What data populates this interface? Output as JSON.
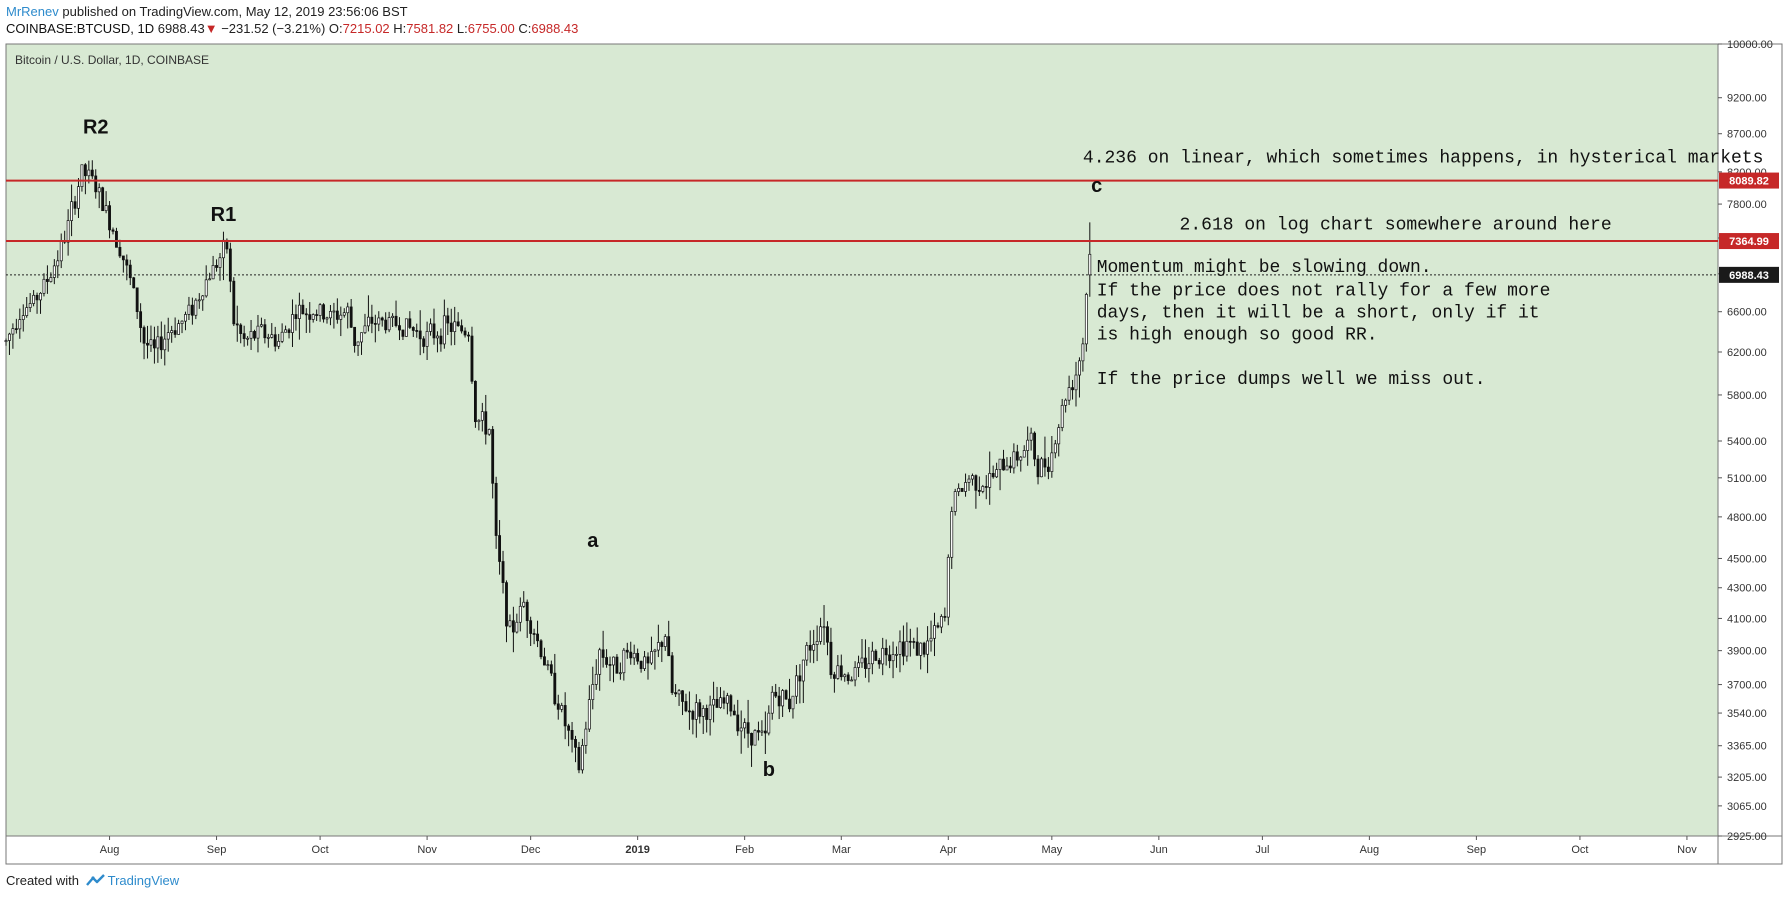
{
  "header": {
    "author": "MrRenev",
    "published_text": "published on TradingView.com, May 12, 2019 23:56:06 BST",
    "symbol": "COINBASE:BTCUSD, 1D",
    "last": "6988.43",
    "change_arrow": "▼",
    "change": "−231.52 (−3.21%)",
    "open_label": "O:",
    "open": "7215.02",
    "high_label": "H:",
    "high": "7581.82",
    "low_label": "L:",
    "low": "6755.00",
    "close_label": "C:",
    "close": "6988.43"
  },
  "footer": {
    "created_with": "Created with",
    "brand": "TradingView"
  },
  "colors": {
    "plot_bg": "#d8e9d3",
    "candle": "#111111",
    "level_line": "#c62828",
    "price_badge_red": "#c62828",
    "price_badge_dark": "#1a1a1a"
  },
  "chart_data": {
    "type": "candlestick",
    "title": "Bitcoin / U.S. Dollar, 1D, COINBASE",
    "y_scale": "log",
    "ylim": [
      2925,
      10000
    ],
    "xlim": [
      "2018-07-02",
      "2019-11-10"
    ],
    "y_ticks": [
      "10000.00",
      "9200.00",
      "8700.00",
      "8200.00",
      "7800.00",
      "7400.00",
      "7000.00",
      "6600.00",
      "6200.00",
      "5800.00",
      "5400.00",
      "5100.00",
      "4800.00",
      "4500.00",
      "4300.00",
      "4100.00",
      "3900.00",
      "3700.00",
      "3540.00",
      "3365.00",
      "3205.00",
      "3065.00",
      "2925.00"
    ],
    "x_ticks": [
      {
        "label": "Aug",
        "date": "2018-08-01"
      },
      {
        "label": "Sep",
        "date": "2018-09-01"
      },
      {
        "label": "Oct",
        "date": "2018-10-01"
      },
      {
        "label": "Nov",
        "date": "2018-11-01"
      },
      {
        "label": "Dec",
        "date": "2018-12-01"
      },
      {
        "label": "2019",
        "date": "2019-01-01"
      },
      {
        "label": "Feb",
        "date": "2019-02-01"
      },
      {
        "label": "Mar",
        "date": "2019-03-01"
      },
      {
        "label": "Apr",
        "date": "2019-04-01"
      },
      {
        "label": "May",
        "date": "2019-05-01"
      },
      {
        "label": "Jun",
        "date": "2019-06-01"
      },
      {
        "label": "Jul",
        "date": "2019-07-01"
      },
      {
        "label": "Aug",
        "date": "2019-08-01"
      },
      {
        "label": "Sep",
        "date": "2019-09-01"
      },
      {
        "label": "Oct",
        "date": "2019-10-01"
      },
      {
        "label": "Nov",
        "date": "2019-11-01"
      }
    ],
    "price_path": [
      [
        "2018-07-02",
        6300
      ],
      [
        "2018-07-06",
        6600
      ],
      [
        "2018-07-10",
        6700
      ],
      [
        "2018-07-15",
        7000
      ],
      [
        "2018-07-19",
        7400
      ],
      [
        "2018-07-24",
        8200
      ],
      [
        "2018-07-27",
        8100
      ],
      [
        "2018-07-31",
        7700
      ],
      [
        "2018-08-04",
        7300
      ],
      [
        "2018-08-08",
        6800
      ],
      [
        "2018-08-11",
        6300
      ],
      [
        "2018-08-14",
        6200
      ],
      [
        "2018-08-18",
        6400
      ],
      [
        "2018-08-22",
        6500
      ],
      [
        "2018-08-26",
        6700
      ],
      [
        "2018-08-30",
        7000
      ],
      [
        "2018-09-04",
        7300
      ],
      [
        "2018-09-06",
        6500
      ],
      [
        "2018-09-09",
        6300
      ],
      [
        "2018-09-14",
        6400
      ],
      [
        "2018-09-19",
        6300
      ],
      [
        "2018-09-24",
        6600
      ],
      [
        "2018-09-29",
        6600
      ],
      [
        "2018-10-04",
        6550
      ],
      [
        "2018-10-09",
        6600
      ],
      [
        "2018-10-11",
        6300
      ],
      [
        "2018-10-16",
        6500
      ],
      [
        "2018-10-24",
        6480
      ],
      [
        "2018-11-01",
        6350
      ],
      [
        "2018-11-07",
        6450
      ],
      [
        "2018-11-13",
        6400
      ],
      [
        "2018-11-15",
        5600
      ],
      [
        "2018-11-19",
        5500
      ],
      [
        "2018-11-21",
        4600
      ],
      [
        "2018-11-25",
        4000
      ],
      [
        "2018-11-29",
        4200
      ],
      [
        "2018-12-04",
        3900
      ],
      [
        "2018-12-09",
        3600
      ],
      [
        "2018-12-15",
        3250
      ],
      [
        "2018-12-19",
        3700
      ],
      [
        "2018-12-21",
        3900
      ],
      [
        "2018-12-25",
        3800
      ],
      [
        "2018-12-30",
        3900
      ],
      [
        "2019-01-04",
        3800
      ],
      [
        "2019-01-09",
        4000
      ],
      [
        "2019-01-11",
        3650
      ],
      [
        "2019-01-16",
        3550
      ],
      [
        "2019-01-22",
        3550
      ],
      [
        "2019-01-27",
        3600
      ],
      [
        "2019-02-01",
        3450
      ],
      [
        "2019-02-07",
        3400
      ],
      [
        "2019-02-09",
        3650
      ],
      [
        "2019-02-14",
        3600
      ],
      [
        "2019-02-18",
        3850
      ],
      [
        "2019-02-24",
        4100
      ],
      [
        "2019-02-26",
        3800
      ],
      [
        "2019-03-04",
        3750
      ],
      [
        "2019-03-09",
        3850
      ],
      [
        "2019-03-14",
        3900
      ],
      [
        "2019-03-20",
        3950
      ],
      [
        "2019-03-25",
        3900
      ],
      [
        "2019-03-31",
        4100
      ],
      [
        "2019-04-02",
        4900
      ],
      [
        "2019-04-07",
        5100
      ],
      [
        "2019-04-12",
        5050
      ],
      [
        "2019-04-17",
        5200
      ],
      [
        "2019-04-22",
        5300
      ],
      [
        "2019-04-25",
        5400
      ],
      [
        "2019-04-27",
        5150
      ],
      [
        "2019-05-01",
        5300
      ],
      [
        "2019-05-05",
        5800
      ],
      [
        "2019-05-08",
        6000
      ],
      [
        "2019-05-10",
        6300
      ],
      [
        "2019-05-11",
        6800
      ],
      [
        "2019-05-12",
        6988
      ]
    ],
    "horizontal_levels": [
      {
        "value": 8089.82,
        "label": "8089.82",
        "style": "solid"
      },
      {
        "value": 7364.99,
        "label": "7364.99",
        "style": "solid"
      },
      {
        "value": 6988.43,
        "label": "6988.43",
        "style": "dotted"
      }
    ],
    "annotations": [
      {
        "text": "R2",
        "date": "2018-07-28",
        "price": 8700
      },
      {
        "text": "R1",
        "date": "2018-09-03",
        "price": 7600
      },
      {
        "text": "a",
        "date": "2018-12-19",
        "price": 4580
      },
      {
        "text": "b",
        "date": "2019-02-08",
        "price": 3210
      },
      {
        "text": "c",
        "date": "2019-05-14",
        "price": 7950
      },
      {
        "text": "4.236 on linear, which sometimes happens, in hysterical markets",
        "date": "2019-05-10",
        "price": 8320
      },
      {
        "text": "2.618 on log chart somewhere around here",
        "date": "2019-06-07",
        "price": 7500
      },
      {
        "text": "Momentum might be slowing down.",
        "date": "2019-05-14",
        "price": 7020
      },
      {
        "text": "If the price does not rally for a few more",
        "date": "2019-05-14",
        "price": 6770
      },
      {
        "text": "days, then it will be a short, only if it",
        "date": "2019-05-14",
        "price": 6540
      },
      {
        "text": "is high enough so good RR.",
        "date": "2019-05-14",
        "price": 6320
      },
      {
        "text": "If the price dumps well we miss out.",
        "date": "2019-05-14",
        "price": 5900
      }
    ]
  }
}
